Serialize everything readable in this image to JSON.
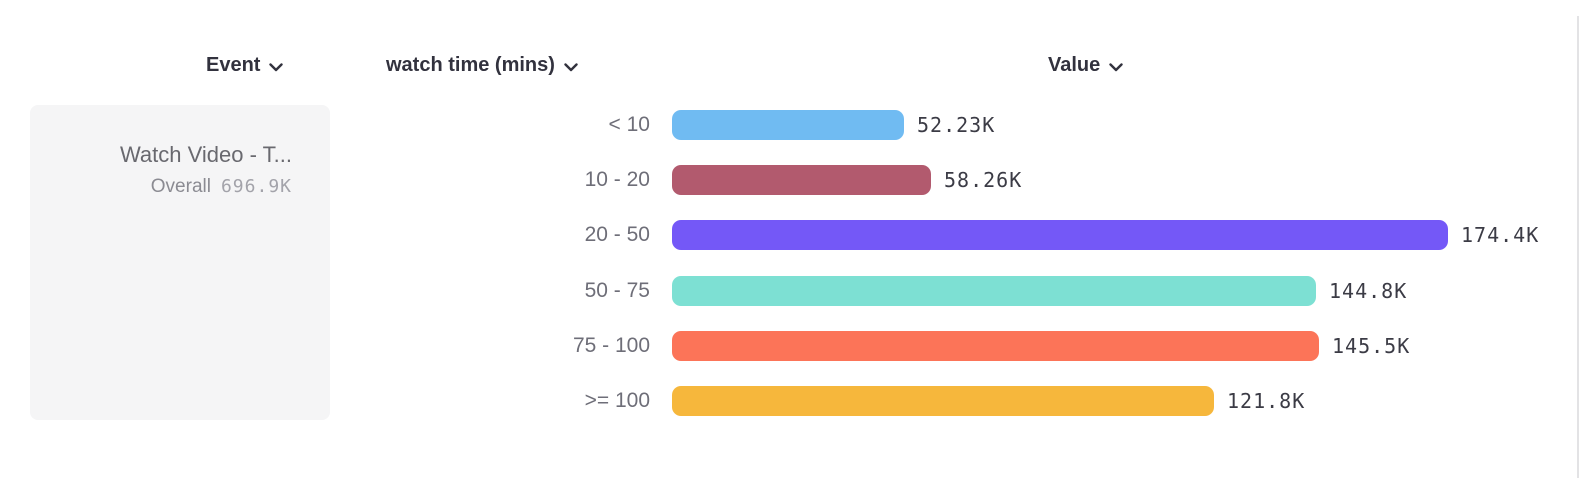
{
  "headers": {
    "event": "Event",
    "breakdown": "watch time (mins)",
    "value": "Value"
  },
  "event_card": {
    "name": "Watch Video - T...",
    "overall_label": "Overall",
    "overall_value": "696.9K"
  },
  "chart_data": {
    "type": "bar",
    "orientation": "horizontal",
    "title": "",
    "xlabel": "Value",
    "ylabel": "watch time (mins)",
    "categories": [
      "< 10",
      "10 - 20",
      "20 - 50",
      "50 - 75",
      "75 - 100",
      ">= 100"
    ],
    "values": [
      52.23,
      58.26,
      174.4,
      144.8,
      145.5,
      121.8
    ],
    "unit": "K",
    "value_labels": [
      "52.23K",
      "58.26K",
      "174.4K",
      "144.8K",
      "145.5K",
      "121.8K"
    ],
    "bar_colors": [
      "#70bbf2",
      "#b25a6e",
      "#7458f7",
      "#7de0d3",
      "#fc7458",
      "#f6b73c"
    ],
    "xlim": [
      0,
      174.4
    ],
    "grid": false,
    "legend": false
  },
  "colors": {
    "header_text": "#32323e",
    "label_text": "#6e6e78",
    "value_text": "#3b3b45",
    "card_bg": "#f5f5f6"
  }
}
